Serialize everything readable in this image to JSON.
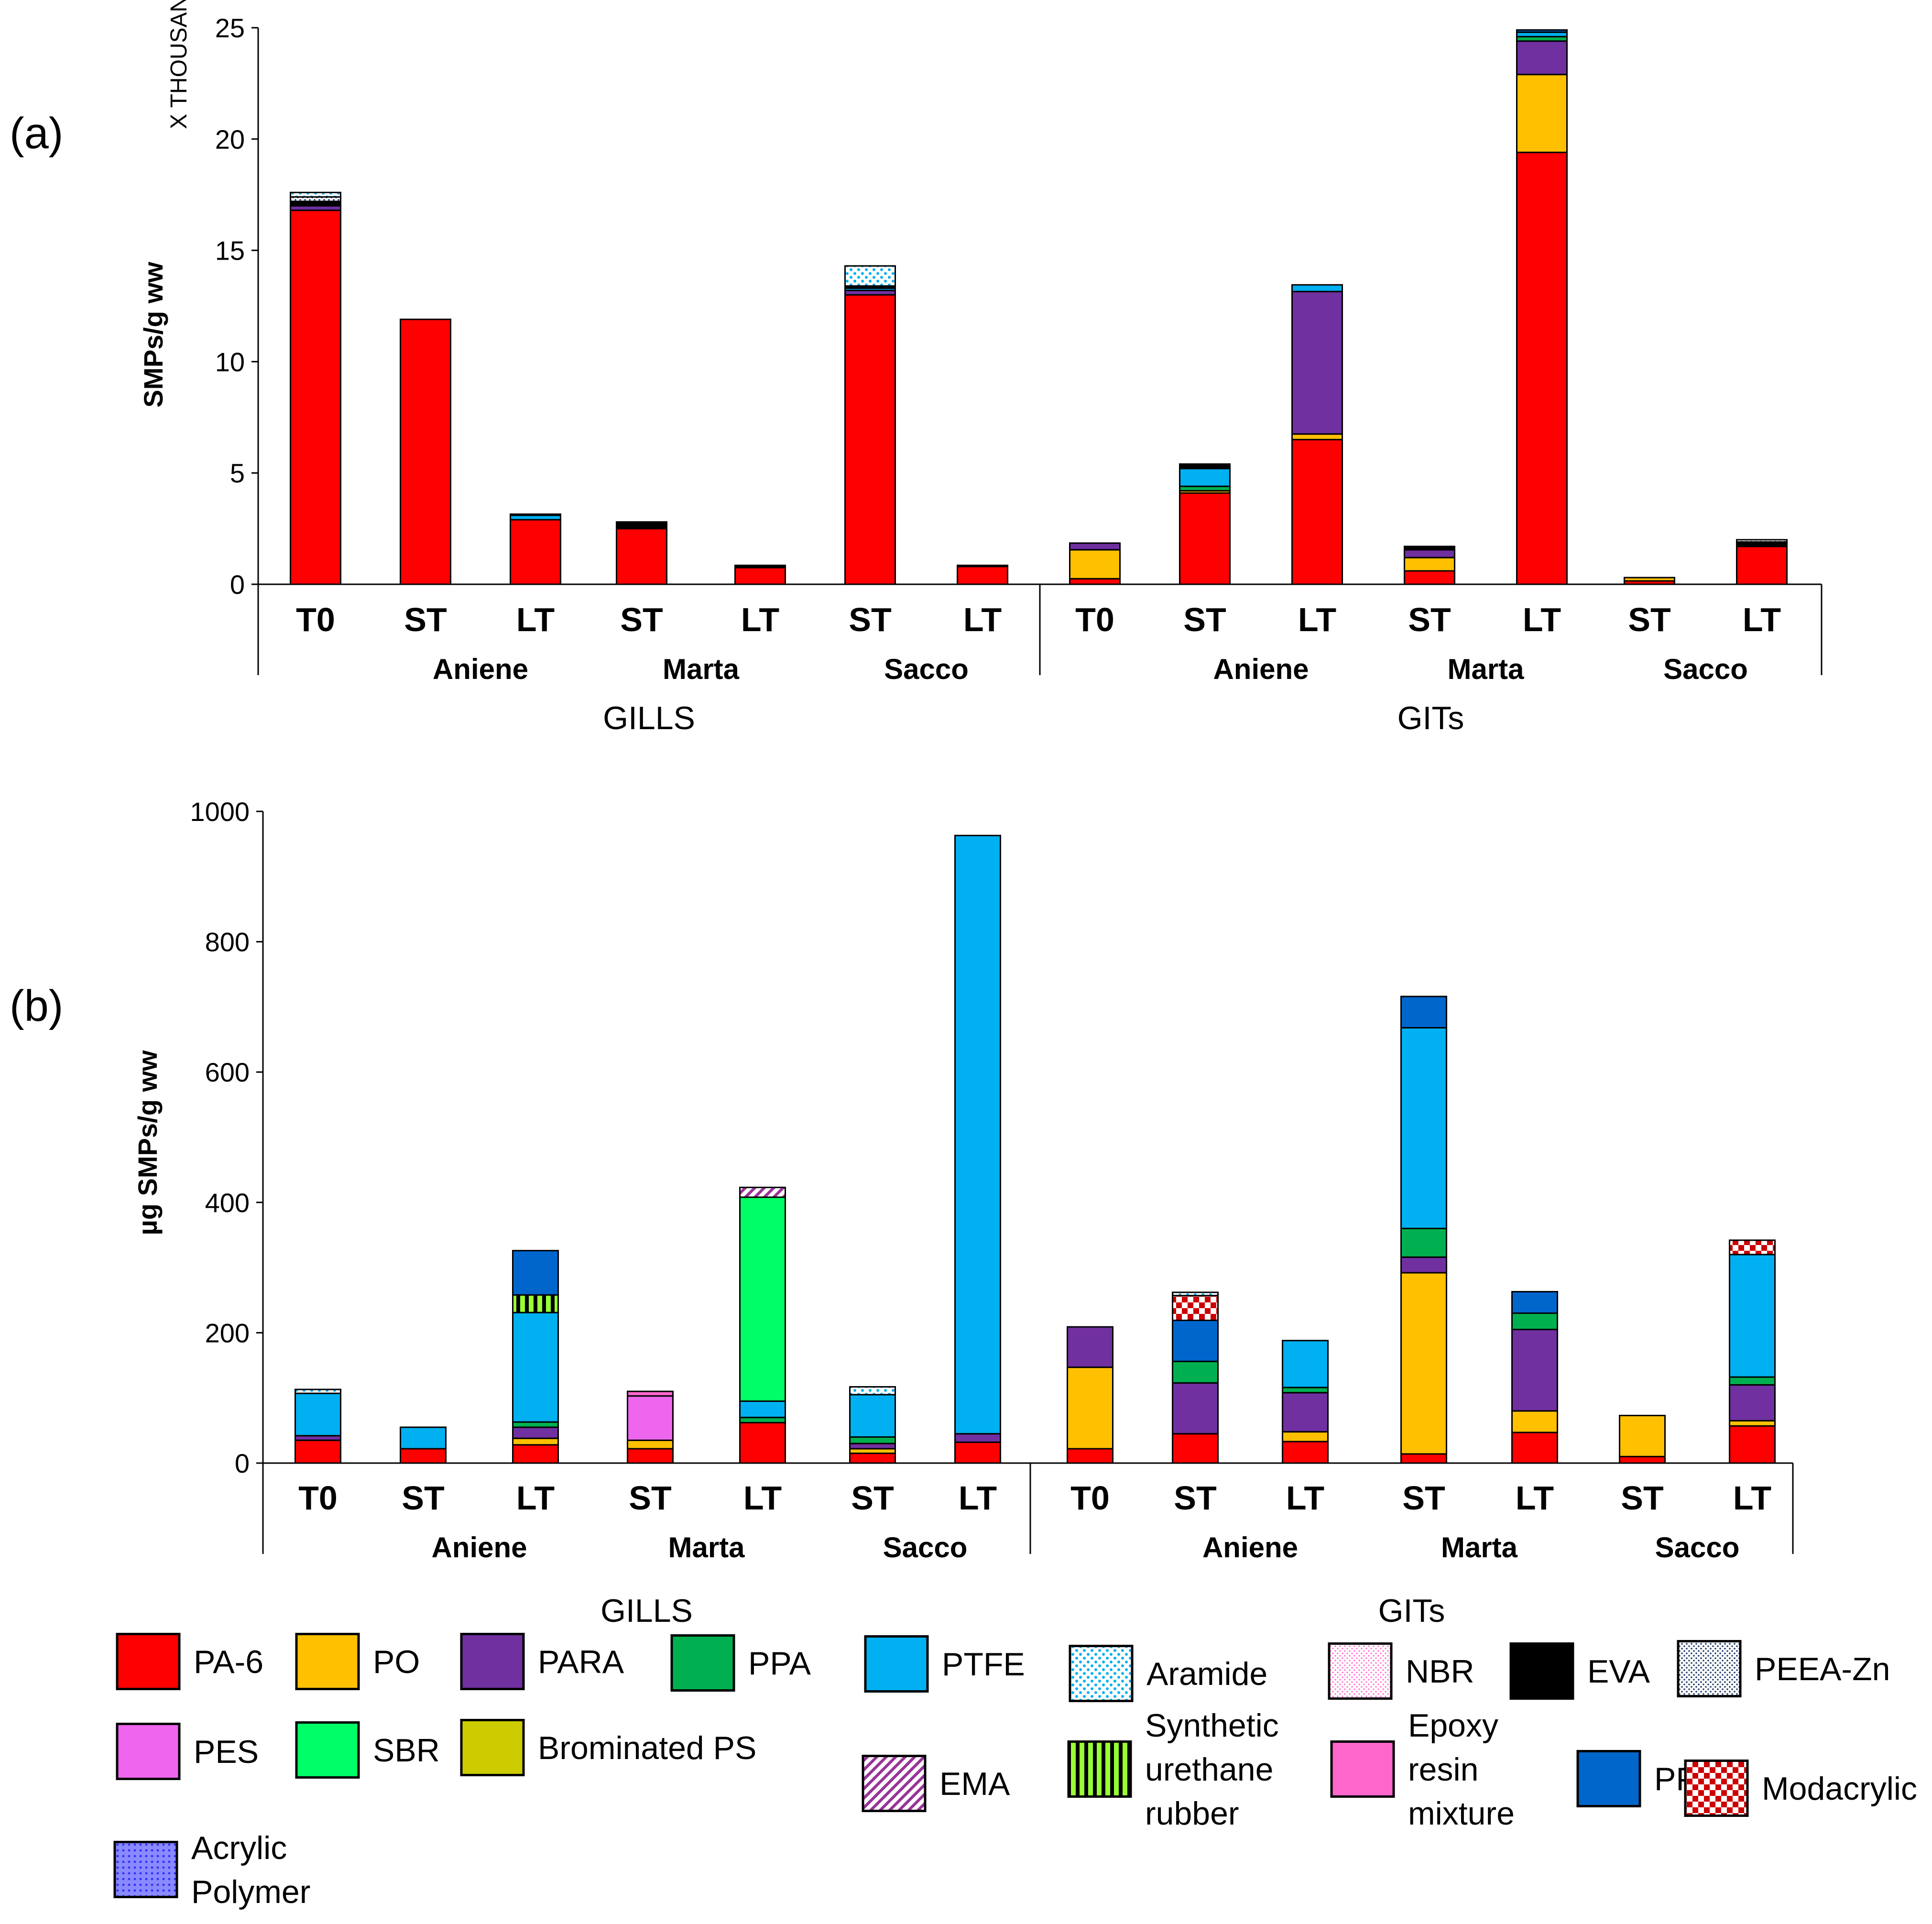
{
  "colors": {
    "PA-6": "#ff0000",
    "PO": "#ffc000",
    "PARA": "#7030a0",
    "PPA": "#00b050",
    "PTFE": "#00b0f0",
    "Aramide": "#00b0f0",
    "NBR": "#ff66cc",
    "EVA": "#000000",
    "PEEA-Zn": "#1f3864",
    "PES": "#ee66ee",
    "SBR": "#00ff66",
    "Brominated PS": "#cccc00",
    "EMA": "#993399",
    "Synthetic urethane rubber": "#99ff33",
    "Epoxy resin mixture": "#ff66cc",
    "PP": "#0066cc",
    "Modacrylic": "#cc0000",
    "Acrylic Polymer": "#3333ff"
  },
  "chart_data": [
    {
      "type": "bar",
      "stacked": true,
      "panel_label": "(a)",
      "ylabel": "SMPs/g ww",
      "units_label": "X THOUSANDS",
      "ylim": [
        0,
        25
      ],
      "yticks": [
        "0",
        "5",
        "10",
        "15",
        "20",
        "25"
      ],
      "categories": [
        "T0",
        "ST",
        "LT",
        "ST",
        "LT",
        "ST",
        "LT",
        "T0",
        "ST",
        "LT",
        "ST",
        "LT",
        "ST",
        "LT"
      ],
      "sites": [
        {
          "label": "Aniene",
          "start": 1,
          "end": 2
        },
        {
          "label": "Marta",
          "start": 3,
          "end": 4
        },
        {
          "label": "Sacco",
          "start": 5,
          "end": 6
        },
        {
          "label": "Aniene",
          "start": 8,
          "end": 9
        },
        {
          "label": "Marta",
          "start": 10,
          "end": 11
        },
        {
          "label": "Sacco",
          "start": 12,
          "end": 13
        }
      ],
      "tissues": [
        {
          "label": "GILLS",
          "start": 0,
          "end": 6
        },
        {
          "label": "GITs",
          "start": 7,
          "end": 13
        }
      ],
      "series": [
        {
          "name": "PA-6",
          "values": [
            16.8,
            11.9,
            2.9,
            2.5,
            0.75,
            13.0,
            0.8,
            0.25,
            4.1,
            6.5,
            0.6,
            19.4,
            0.15,
            1.7
          ]
        },
        {
          "name": "PO",
          "values": [
            0,
            0,
            0,
            0,
            0,
            0,
            0,
            1.3,
            0.1,
            0.25,
            0.6,
            3.5,
            0.15,
            0
          ]
        },
        {
          "name": "PARA",
          "values": [
            0.2,
            0,
            0,
            0,
            0,
            0.2,
            0,
            0.3,
            0,
            6.4,
            0.35,
            1.5,
            0,
            0
          ]
        },
        {
          "name": "PPA",
          "values": [
            0,
            0,
            0,
            0,
            0,
            0,
            0,
            0,
            0.2,
            0,
            0,
            0.2,
            0,
            0
          ]
        },
        {
          "name": "PTFE",
          "values": [
            0,
            0,
            0.2,
            0,
            0,
            0.1,
            0,
            0,
            0.8,
            0.3,
            0,
            0.2,
            0,
            0
          ]
        },
        {
          "name": "PP",
          "values": [
            0,
            0,
            0,
            0,
            0,
            0,
            0,
            0,
            0,
            0,
            0,
            0.1,
            0,
            0
          ]
        },
        {
          "name": "EVA",
          "values": [
            0.2,
            0,
            0.05,
            0.3,
            0.1,
            0.1,
            0.05,
            0,
            0.2,
            0,
            0.15,
            0,
            0,
            0.2
          ]
        },
        {
          "name": "PEEA-Zn",
          "values": [
            0.2,
            0,
            0,
            0,
            0,
            0,
            0,
            0,
            0,
            0,
            0,
            0,
            0,
            0.1
          ]
        },
        {
          "name": "Aramide",
          "values": [
            0.2,
            0,
            0,
            0,
            0,
            0.9,
            0,
            0,
            0,
            0,
            0,
            0,
            0,
            0
          ]
        }
      ]
    },
    {
      "type": "bar",
      "stacked": true,
      "panel_label": "(b)",
      "ylabel": "µg SMPs/g ww",
      "ylim": [
        0,
        1000
      ],
      "yticks": [
        "0",
        "200",
        "400",
        "600",
        "800",
        "1000"
      ],
      "categories": [
        "T0",
        "ST",
        "LT",
        "ST",
        "LT",
        "ST",
        "LT",
        "T0",
        "ST",
        "LT",
        "ST",
        "LT",
        "ST",
        "LT"
      ],
      "sites": [
        {
          "label": "Aniene",
          "start": 1,
          "end": 2
        },
        {
          "label": "Marta",
          "start": 3,
          "end": 4
        },
        {
          "label": "Sacco",
          "start": 5,
          "end": 6
        },
        {
          "label": "Aniene",
          "start": 8,
          "end": 9
        },
        {
          "label": "Marta",
          "start": 10,
          "end": 11
        },
        {
          "label": "Sacco",
          "start": 12,
          "end": 13
        }
      ],
      "tissues": [
        {
          "label": "GILLS",
          "start": 0,
          "end": 6
        },
        {
          "label": "GITs",
          "start": 7,
          "end": 13
        }
      ],
      "series": [
        {
          "name": "PA-6",
          "values": [
            35,
            22,
            28,
            22,
            62,
            15,
            32,
            22,
            45,
            33,
            14,
            47,
            10,
            57
          ]
        },
        {
          "name": "PO",
          "values": [
            0,
            0,
            10,
            13,
            0,
            7,
            0,
            125,
            0,
            15,
            278,
            33,
            63,
            8
          ]
        },
        {
          "name": "PARA",
          "values": [
            7,
            0,
            17,
            0,
            0,
            8,
            13,
            62,
            78,
            60,
            24,
            125,
            0,
            55
          ]
        },
        {
          "name": "PPA",
          "values": [
            0,
            0,
            8,
            0,
            8,
            10,
            0,
            0,
            33,
            8,
            44,
            25,
            0,
            12
          ]
        },
        {
          "name": "PTFE",
          "values": [
            65,
            33,
            168,
            0,
            25,
            65,
            918,
            0,
            0,
            72,
            308,
            0,
            0,
            188
          ]
        },
        {
          "name": "PES",
          "values": [
            0,
            0,
            0,
            68,
            0,
            0,
            0,
            0,
            0,
            0,
            0,
            0,
            0,
            0
          ]
        },
        {
          "name": "SBR",
          "values": [
            0,
            0,
            0,
            0,
            313,
            0,
            0,
            0,
            0,
            0,
            0,
            0,
            0,
            0
          ]
        },
        {
          "name": "Synthetic urethane rubber",
          "values": [
            0,
            0,
            27,
            0,
            0,
            0,
            0,
            0,
            0,
            0,
            0,
            0,
            0,
            0
          ]
        },
        {
          "name": "PP",
          "values": [
            0,
            0,
            68,
            0,
            0,
            0,
            0,
            0,
            63,
            0,
            48,
            33,
            0,
            0
          ]
        },
        {
          "name": "Modacrylic",
          "values": [
            0,
            0,
            0,
            0,
            0,
            0,
            0,
            0,
            38,
            0,
            0,
            0,
            0,
            22
          ]
        },
        {
          "name": "Epoxy resin mixture",
          "values": [
            0,
            0,
            0,
            7,
            0,
            0,
            0,
            0,
            0,
            0,
            0,
            0,
            0,
            0
          ]
        },
        {
          "name": "EMA",
          "values": [
            0,
            0,
            0,
            0,
            15,
            0,
            0,
            0,
            0,
            0,
            0,
            0,
            0,
            0
          ]
        },
        {
          "name": "Aramide",
          "values": [
            6,
            0,
            0,
            0,
            0,
            12,
            0,
            0,
            5,
            0,
            0,
            0,
            0,
            0
          ]
        }
      ]
    }
  ],
  "legend": {
    "entries": [
      {
        "name": "PA-6",
        "label": "PA-6",
        "pattern": "solid"
      },
      {
        "name": "PO",
        "label": "PO",
        "pattern": "solid"
      },
      {
        "name": "PARA",
        "label": "PARA",
        "pattern": "solid"
      },
      {
        "name": "PPA",
        "label": "PPA",
        "pattern": "solid"
      },
      {
        "name": "PTFE",
        "label": "PTFE",
        "pattern": "solid"
      },
      {
        "name": "Aramide",
        "label": "Aramide",
        "pattern": "dots"
      },
      {
        "name": "NBR",
        "label": "NBR",
        "pattern": "fine-dots"
      },
      {
        "name": "EVA",
        "label": "EVA",
        "pattern": "solid"
      },
      {
        "name": "PEEA-Zn",
        "label": "PEEA-Zn",
        "pattern": "fine-dots"
      },
      {
        "name": "PES",
        "label": "PES",
        "pattern": "solid"
      },
      {
        "name": "SBR",
        "label": "SBR",
        "pattern": "solid"
      },
      {
        "name": "Brominated PS",
        "label": "Brominated PS",
        "pattern": "solid"
      },
      {
        "name": "EMA",
        "label": "EMA",
        "pattern": "diagonal"
      },
      {
        "name": "Synthetic urethane rubber",
        "label": "Synthetic urethane rubber",
        "lines": [
          "Synthetic",
          "urethane",
          "rubber"
        ],
        "pattern": "vertical"
      },
      {
        "name": "Epoxy resin mixture",
        "label": "Epoxy resin mixture",
        "lines": [
          "Epoxy",
          "resin",
          "mixture"
        ],
        "pattern": "solid"
      },
      {
        "name": "PP",
        "label": "PP",
        "pattern": "solid"
      },
      {
        "name": "Modacrylic",
        "label": "Modacrylic",
        "pattern": "checker"
      },
      {
        "name": "Acrylic Polymer",
        "label": "Acrylic Polymer",
        "lines": [
          "Acrylic",
          "Polymer"
        ],
        "pattern": "grid-dots"
      }
    ]
  }
}
